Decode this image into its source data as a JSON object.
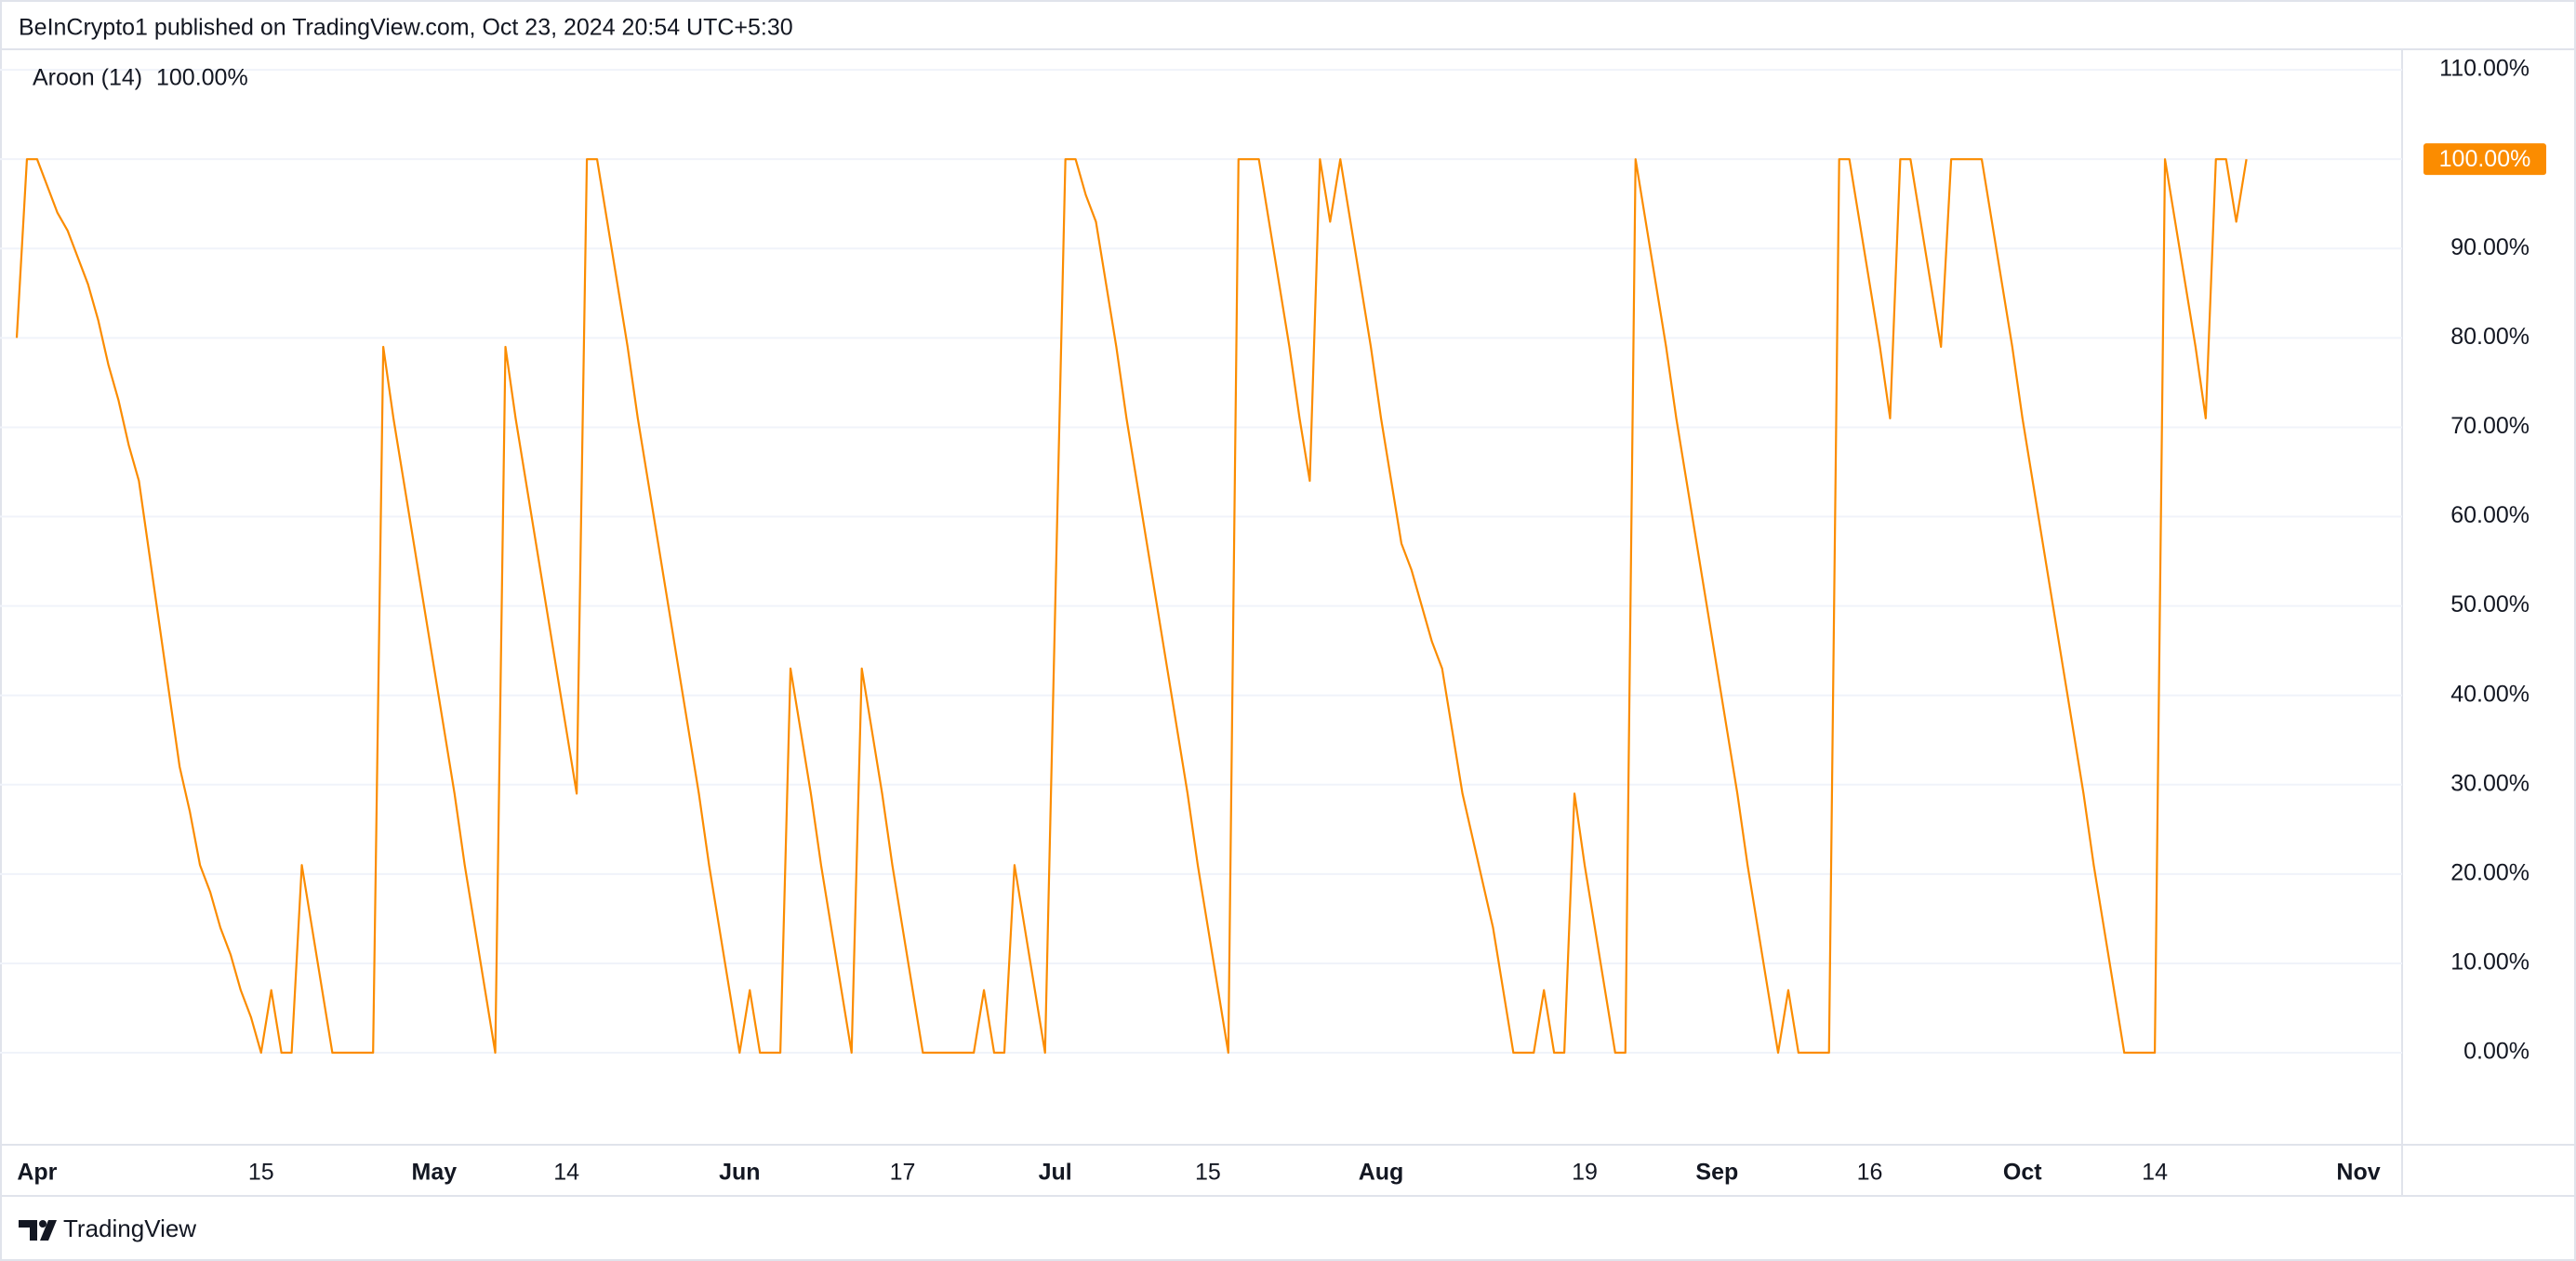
{
  "header": {
    "title": "BeInCrypto1 published on TradingView.com, Oct 23, 2024 20:54 UTC+5:30"
  },
  "chart_data": {
    "type": "line",
    "legend": "Aroon (14)",
    "legend_value_label": "100.00%",
    "price_label": "100.00%",
    "color": "#fb8c00",
    "grid": true,
    "ylim": [
      -10.3,
      112.3
    ],
    "yticks": [
      {
        "value": 0,
        "label": "0.00%"
      },
      {
        "value": 10,
        "label": "10.00%"
      },
      {
        "value": 20,
        "label": "20.00%"
      },
      {
        "value": 30,
        "label": "30.00%"
      },
      {
        "value": 40,
        "label": "40.00%"
      },
      {
        "value": 50,
        "label": "50.00%"
      },
      {
        "value": 60,
        "label": "60.00%"
      },
      {
        "value": 70,
        "label": "70.00%"
      },
      {
        "value": 80,
        "label": "80.00%"
      },
      {
        "value": 90,
        "label": "90.00%"
      },
      {
        "value": 100,
        "label": "100.00%"
      },
      {
        "value": 110,
        "label": "110.00%"
      }
    ],
    "categories": [
      null,
      null,
      "Apr",
      null,
      null,
      null,
      null,
      null,
      null,
      null,
      null,
      null,
      null,
      null,
      null,
      null,
      null,
      null,
      null,
      null,
      null,
      null,
      null,
      null,
      "15",
      null,
      null,
      null,
      null,
      null,
      null,
      null,
      null,
      null,
      null,
      null,
      null,
      null,
      null,
      null,
      null,
      "May",
      null,
      null,
      null,
      null,
      null,
      null,
      null,
      null,
      null,
      null,
      null,
      null,
      "14",
      null,
      null,
      null,
      null,
      null,
      null,
      null,
      null,
      null,
      null,
      null,
      null,
      null,
      null,
      null,
      null,
      "Jun",
      null,
      null,
      null,
      null,
      null,
      null,
      null,
      null,
      null,
      null,
      null,
      null,
      null,
      null,
      null,
      "17",
      null,
      null,
      null,
      null,
      null,
      null,
      null,
      null,
      null,
      null,
      null,
      null,
      null,
      null,
      "Jul",
      null,
      null,
      null,
      null,
      null,
      null,
      null,
      null,
      null,
      null,
      null,
      null,
      null,
      null,
      "15",
      null,
      null,
      null,
      null,
      null,
      null,
      null,
      null,
      null,
      null,
      null,
      null,
      null,
      null,
      null,
      null,
      "Aug",
      null,
      null,
      null,
      null,
      null,
      null,
      null,
      null,
      null,
      null,
      null,
      null,
      null,
      null,
      null,
      null,
      null,
      null,
      null,
      "19",
      null,
      null,
      null,
      null,
      null,
      null,
      null,
      null,
      null,
      null,
      null,
      null,
      "Sep",
      null,
      null,
      null,
      null,
      null,
      null,
      null,
      null,
      null,
      null,
      null,
      null,
      null,
      null,
      "16",
      null,
      null,
      null,
      null,
      null,
      null,
      null,
      null,
      null,
      null,
      null,
      null,
      null,
      null,
      "Oct",
      null,
      null,
      null,
      null,
      null,
      null,
      null,
      null,
      null,
      null,
      null,
      null,
      "14",
      null,
      null,
      null,
      null,
      null,
      null,
      null,
      null,
      null,
      null,
      null,
      null,
      null,
      null,
      null,
      null,
      null,
      null,
      null,
      "Nov",
      null
    ],
    "values": [
      80,
      100,
      100,
      97,
      94,
      92,
      89,
      86,
      82,
      77,
      73,
      68,
      64,
      56,
      48,
      40,
      32,
      27,
      21,
      18,
      14,
      11,
      7,
      4,
      0,
      7,
      0,
      0,
      21,
      14,
      7,
      0,
      0,
      0,
      0,
      0,
      79,
      71,
      64,
      57,
      50,
      43,
      36,
      29,
      21,
      14,
      7,
      0,
      79,
      71,
      64,
      57,
      50,
      43,
      36,
      29,
      100,
      100,
      93,
      86,
      79,
      71,
      64,
      57,
      50,
      43,
      36,
      29,
      21,
      14,
      7,
      0,
      7,
      0,
      0,
      0,
      43,
      36,
      29,
      21,
      14,
      7,
      0,
      43,
      36,
      29,
      21,
      14,
      7,
      0,
      0,
      0,
      0,
      0,
      0,
      7,
      0,
      0,
      21,
      14,
      7,
      0,
      50,
      100,
      100,
      96,
      93,
      86,
      79,
      71,
      64,
      57,
      50,
      43,
      36,
      29,
      21,
      14,
      7,
      0,
      100,
      100,
      100,
      93,
      86,
      79,
      71,
      64,
      100,
      93,
      100,
      93,
      86,
      79,
      71,
      64,
      57,
      54,
      50,
      46,
      43,
      36,
      29,
      24,
      19,
      14,
      7,
      0,
      0,
      0,
      7,
      0,
      0,
      29,
      21,
      14,
      7,
      0,
      0,
      100,
      93,
      86,
      79,
      71,
      64,
      57,
      50,
      43,
      36,
      29,
      21,
      14,
      7,
      0,
      7,
      0,
      0,
      0,
      0,
      100,
      100,
      93,
      86,
      79,
      71,
      100,
      100,
      93,
      86,
      79,
      100,
      100,
      100,
      100,
      93,
      86,
      79,
      71,
      64,
      57,
      50,
      43,
      36,
      29,
      21,
      14,
      7,
      0,
      0,
      0,
      0,
      100,
      93,
      86,
      79,
      71,
      100,
      100,
      93,
      100,
      null,
      null,
      null,
      null,
      null,
      null,
      null,
      null,
      null,
      null,
      null,
      null
    ]
  },
  "footer": {
    "brand": "TradingView"
  }
}
